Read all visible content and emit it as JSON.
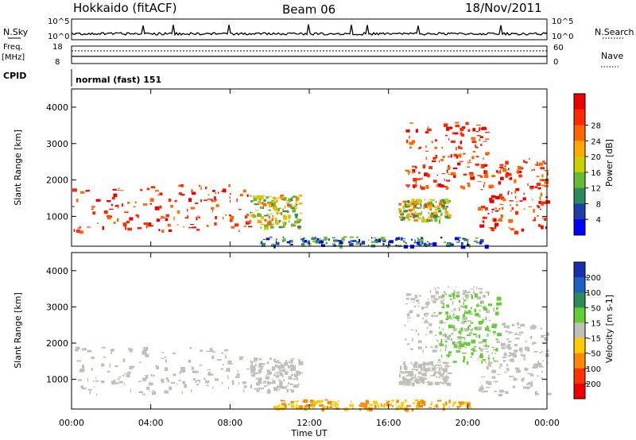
{
  "header": {
    "radar": "Hokkaido (fitACF)",
    "beam": "Beam 06",
    "date": "18/Nov/2011"
  },
  "status_panels": {
    "nsky_label": "N.Sky",
    "nsearch_label": "N.Search",
    "noise_ticks": [
      "10^5",
      "10^0"
    ],
    "freq_label_top": "Freq.",
    "freq_label_unit": "[MHz]",
    "freq_ticks_left": [
      "18",
      "8"
    ],
    "nave_ticks_right": [
      "60",
      "0"
    ],
    "nave_label": "Nave",
    "cpid_label": "CPID",
    "cpid_value": "normal (fast) 151"
  },
  "colors": {
    "power_scale": [
      "#0000ff",
      "#1e3ea8",
      "#2f8a5a",
      "#66bb33",
      "#c8d000",
      "#ffaa00",
      "#ff6600",
      "#ff2a00",
      "#ee0000"
    ],
    "velocity_scale": [
      "#1a2fb0",
      "#2060c0",
      "#2f8a5a",
      "#66cc33",
      "#c0c0b8",
      "#ffcc00",
      "#ff8800",
      "#ff3300",
      "#ee0000"
    ],
    "ground_scatter": "#c0c0b8"
  },
  "chart_data": [
    {
      "type": "heatmap",
      "name": "power",
      "ylabel": "Slant Range [km]",
      "yticks": [
        1000,
        2000,
        3000,
        4000
      ],
      "ylim": [
        180,
        4500
      ],
      "xlabel": "Time UT",
      "xticks": [
        "00:00",
        "04:00",
        "08:00",
        "12:00",
        "16:00",
        "20:00",
        "00:00"
      ],
      "xlim_hours": [
        0,
        24
      ],
      "colorbar": {
        "label": "Power [dB]",
        "ticks": [
          "4",
          "8",
          "12",
          "16",
          "20",
          "24",
          "28"
        ]
      },
      "regions": [
        {
          "t0": 0.0,
          "t1": 9.0,
          "r0": 600,
          "r1": 1900,
          "level": "high"
        },
        {
          "t0": 9.0,
          "t1": 11.5,
          "r0": 700,
          "r1": 1600,
          "level": "mid"
        },
        {
          "t0": 16.5,
          "t1": 19.0,
          "r0": 900,
          "r1": 1500,
          "level": "mid"
        },
        {
          "t0": 16.8,
          "t1": 21.0,
          "r0": 1800,
          "r1": 3600,
          "level": "high"
        },
        {
          "t0": 20.5,
          "t1": 24.0,
          "r0": 600,
          "r1": 2600,
          "level": "high"
        },
        {
          "t0": 9.5,
          "t1": 21.0,
          "r0": 200,
          "r1": 450,
          "level": "low"
        }
      ]
    },
    {
      "type": "heatmap",
      "name": "velocity",
      "ylabel": "Slant Range [km]",
      "yticks": [
        1000,
        2000,
        3000,
        4000
      ],
      "ylim": [
        180,
        4500
      ],
      "xlabel": "Time UT",
      "xticks": [
        "00:00",
        "04:00",
        "08:00",
        "12:00",
        "16:00",
        "20:00",
        "00:00"
      ],
      "xlim_hours": [
        0,
        24
      ],
      "colorbar": {
        "label": "Velocity [m s-1]",
        "ticks": [
          "200",
          "100",
          "50",
          "15",
          "-15",
          "-50",
          "-100",
          "-200"
        ]
      },
      "regions": [
        {
          "t0": 0.0,
          "t1": 9.0,
          "r0": 600,
          "r1": 1900,
          "level": "ground"
        },
        {
          "t0": 9.0,
          "t1": 11.5,
          "r0": 700,
          "r1": 1600,
          "level": "ground"
        },
        {
          "t0": 16.5,
          "t1": 19.0,
          "r0": 900,
          "r1": 1500,
          "level": "ground"
        },
        {
          "t0": 16.8,
          "t1": 21.0,
          "r0": 1800,
          "r1": 3600,
          "level": "ground"
        },
        {
          "t0": 20.5,
          "t1": 24.0,
          "r0": 600,
          "r1": 2600,
          "level": "ground"
        },
        {
          "t0": 10.0,
          "t1": 20.0,
          "r0": 200,
          "r1": 450,
          "level": "neg"
        },
        {
          "t0": 18.5,
          "t1": 21.5,
          "r0": 1500,
          "r1": 3400,
          "level": "pos"
        }
      ]
    }
  ]
}
